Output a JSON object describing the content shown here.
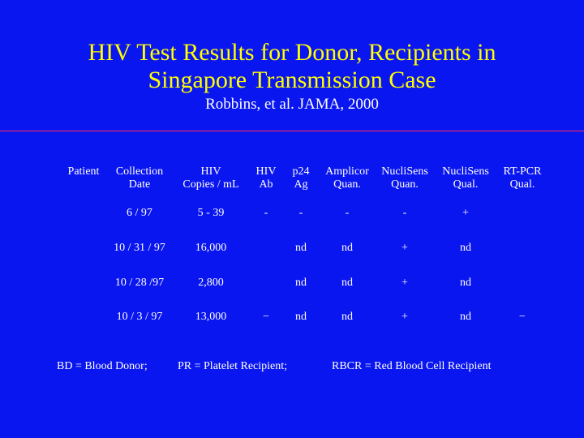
{
  "slide": {
    "title_line1": "HIV Test Results for Donor, Recipients in",
    "title_line2": "Singapore Transmission Case",
    "subtitle": "Robbins, et al. JAMA, 2000"
  },
  "table": {
    "headers": [
      [
        "Patient",
        ""
      ],
      [
        "Collection",
        "Date"
      ],
      [
        "HIV",
        "Copies / mL"
      ],
      [
        "HIV",
        "Ab"
      ],
      [
        "p24",
        "Ag"
      ],
      [
        "Amplicor",
        "Quan."
      ],
      [
        "NucliSens",
        "Quan."
      ],
      [
        "NucliSens",
        "Qual."
      ],
      [
        "RT-PCR",
        "Qual."
      ]
    ],
    "rows": [
      [
        "",
        "6 / 97",
        "5 - 39",
        "-",
        "-",
        "-",
        "-",
        "+",
        ""
      ],
      [
        "",
        "10 / 31 / 97",
        "16,000",
        "",
        "nd",
        "nd",
        "+",
        "nd",
        ""
      ],
      [
        "",
        "10 / 28 /97",
        "2,800",
        "",
        "nd",
        "nd",
        "+",
        "nd",
        ""
      ],
      [
        "",
        "10 / 3 / 97",
        "13,000",
        "−",
        "nd",
        "nd",
        "+",
        "nd",
        "−"
      ]
    ]
  },
  "footer": {
    "bd": "BD = Blood Donor;",
    "pr": "PR = Platelet Recipient;",
    "rbcr": "RBCR = Red Blood Cell Recipient"
  }
}
